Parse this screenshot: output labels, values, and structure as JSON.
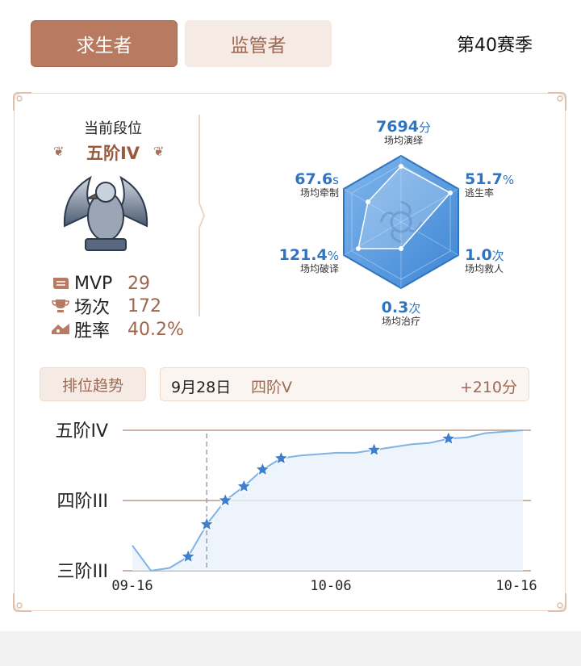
{
  "tabs": {
    "survivor": "求生者",
    "hunter": "监管者"
  },
  "season": "第40赛季",
  "rank": {
    "title": "当前段位",
    "name": "五阶IV"
  },
  "stats": [
    {
      "label": "MVP",
      "value": "29",
      "icon": "scroll-icon"
    },
    {
      "label": "场次",
      "value": "172",
      "icon": "trophy-icon"
    },
    {
      "label": "胜率",
      "value": "40.2%",
      "icon": "winrate-icon"
    }
  ],
  "hexagon": {
    "top": {
      "value": "7694",
      "unit": "分",
      "label": "场均演绎"
    },
    "top_right": {
      "value": "51.7",
      "unit": "%",
      "label": "逃生率"
    },
    "bottom_right": {
      "value": "1.0",
      "unit": "次",
      "label": "场均救人"
    },
    "bottom": {
      "value": "0.3",
      "unit": "次",
      "label": "场均治疗"
    },
    "bottom_left": {
      "value": "121.4",
      "unit": "%",
      "label": "场均破译"
    },
    "top_left": {
      "value": "67.6",
      "unit": "s",
      "label": "场均牵制"
    }
  },
  "trend": {
    "button": "排位趋势",
    "selected_date": "9月28日",
    "selected_rank": "四阶V",
    "selected_score": "+210分"
  },
  "chart_data": {
    "type": "line",
    "y_categories": [
      "三阶III",
      "四阶III",
      "五阶IV"
    ],
    "x_ticks": [
      "09-16",
      "10-06",
      "10-16"
    ],
    "series": [
      {
        "x": [
          0,
          1,
          2,
          3,
          4,
          5,
          6,
          7,
          8,
          9,
          10,
          11,
          12,
          13,
          14,
          15,
          16,
          17,
          18,
          19,
          20,
          21
        ],
        "y": [
          0.18,
          0.0,
          0.02,
          0.1,
          0.33,
          0.5,
          0.6,
          0.72,
          0.8,
          0.82,
          0.83,
          0.84,
          0.84,
          0.86,
          0.88,
          0.9,
          0.91,
          0.94,
          0.95,
          0.98,
          0.99,
          1.0
        ],
        "stars": [
          3,
          4,
          5,
          6,
          7,
          8,
          13,
          17
        ]
      }
    ],
    "selected_index": 4,
    "colors": {
      "line": "#7fb3e6",
      "fill": "#e8f1fb",
      "star": "#3f7fd0",
      "grid": "#b89a86"
    }
  },
  "colors": {
    "accent": "#b97a62",
    "tab_inactive_bg": "#f6ebe4",
    "value_blue": "#2f74c0"
  }
}
